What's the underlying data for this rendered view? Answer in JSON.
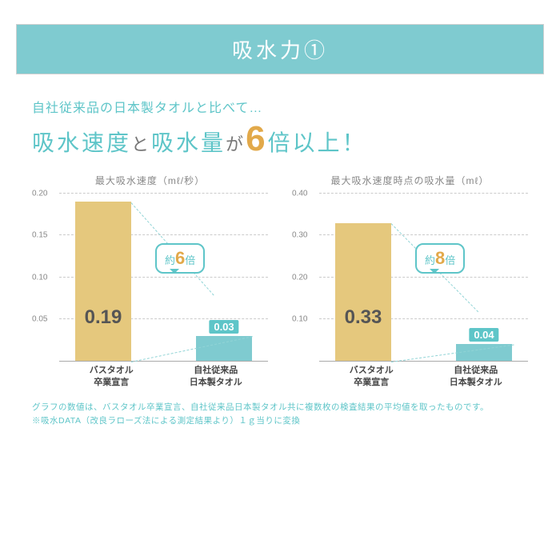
{
  "banner": {
    "text": "吸水力①",
    "background": "#7fcbd0"
  },
  "subtitle": {
    "small": "自社従来品の日本製タオルと比べて…",
    "part1": "吸水速度",
    "join1": "と",
    "part2": "吸水量",
    "join2": "が",
    "big_num": "6",
    "tail": "倍以上！"
  },
  "chart1": {
    "title": "最大吸水速度（mℓ/秒）",
    "ymax": 0.2,
    "yticks": [
      "0.20",
      "0.15",
      "0.10",
      "0.05"
    ],
    "bar1": {
      "value": 0.19,
      "label": "0.19",
      "color": "#e5c87d"
    },
    "bar2": {
      "value": 0.03,
      "label": "0.03",
      "color": "#7fcbd0"
    },
    "xlabel1a": "バスタオル",
    "xlabel1b": "卒業宣言",
    "xlabel2a": "自社従来品",
    "xlabel2b": "日本製タオル",
    "callout_pre": "約",
    "callout_num": "6",
    "callout_suf": "倍"
  },
  "chart2": {
    "title": "最大吸水速度時点の吸水量（mℓ）",
    "ymax": 0.4,
    "yticks": [
      "0.40",
      "0.30",
      "0.20",
      "0.10"
    ],
    "bar1": {
      "value": 0.33,
      "label": "0.33",
      "color": "#e5c87d"
    },
    "bar2": {
      "value": 0.04,
      "label": "0.04",
      "color": "#7fcbd0"
    },
    "xlabel1a": "バスタオル",
    "xlabel1b": "卒業宣言",
    "xlabel2a": "自社従来品",
    "xlabel2b": "日本製タオル",
    "callout_pre": "約",
    "callout_num": "8",
    "callout_suf": "倍"
  },
  "footnote": {
    "line1": "グラフの数値は、バスタオル卒業宣言、自社従来品日本製タオル共に複数枚の検査結果の平均値を取ったものです。",
    "line2": "※吸水DATA（改良ラローズ法による測定結果より）１ｇ当りに変換"
  },
  "colors": {
    "teal": "#5ec5c8",
    "gold": "#e2a94a",
    "bar_yellow": "#e5c87d",
    "bar_teal": "#7fcbd0"
  }
}
